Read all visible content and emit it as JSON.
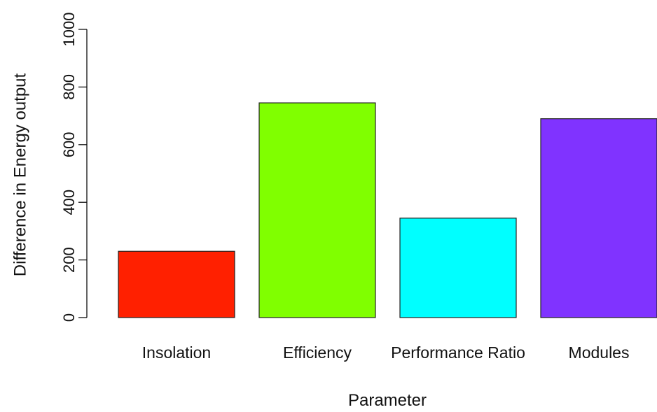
{
  "chart_data": {
    "type": "bar",
    "title": "",
    "xlabel": "Parameter",
    "ylabel": "Difference in Energy output",
    "categories": [
      "Insolation",
      "Efficiency",
      "Performance Ratio",
      "Modules"
    ],
    "values": [
      230,
      745,
      345,
      690
    ],
    "colors": [
      "#FF2000",
      "#80FF00",
      "#00FFFF",
      "#8033FF"
    ],
    "ylim": [
      0,
      1000
    ],
    "yticks": [
      "0",
      "200",
      "400",
      "600",
      "800",
      "1000"
    ],
    "ytick_values": [
      0,
      200,
      400,
      600,
      800,
      1000
    ],
    "grid": false,
    "legend": "none"
  }
}
